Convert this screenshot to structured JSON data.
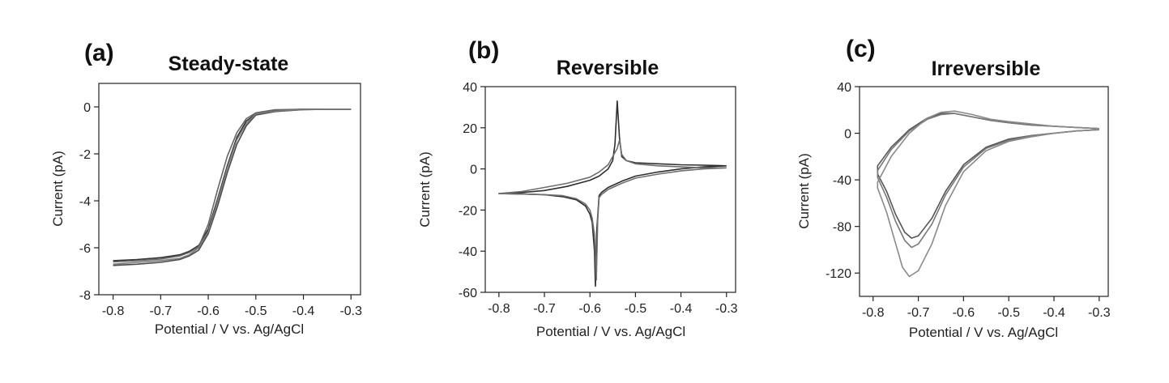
{
  "chart_data": [
    {
      "type": "line",
      "panel": "(a)",
      "title": "Steady-state",
      "xlabel": "Potential / V vs. Ag/AgCl",
      "ylabel": "Current (pA)",
      "xlim": [
        -0.83,
        -0.28
      ],
      "ylim": [
        -8,
        1
      ],
      "xticks": [
        -0.8,
        -0.7,
        -0.6,
        -0.5,
        -0.4,
        -0.3
      ],
      "xtick_labels": [
        "-0.8",
        "-0.7",
        "-0.6",
        "-0.5",
        "-0.4",
        "-0.3"
      ],
      "yticks": [
        -8,
        -6,
        -4,
        -2,
        0
      ],
      "ytick_labels": [
        "-8",
        "-6",
        "-4",
        "-2",
        "0"
      ],
      "colors": [
        "#333333",
        "#4a4a4a",
        "#666666",
        "#7a7a7a"
      ],
      "series": [
        {
          "x": [
            -0.8,
            -0.75,
            -0.7,
            -0.66,
            -0.64,
            -0.62,
            -0.6,
            -0.58,
            -0.56,
            -0.54,
            -0.52,
            -0.5,
            -0.46,
            -0.4,
            -0.35,
            -0.3
          ],
          "values": [
            -6.55,
            -6.5,
            -6.42,
            -6.3,
            -6.15,
            -5.9,
            -5.2,
            -3.9,
            -2.5,
            -1.3,
            -0.6,
            -0.3,
            -0.15,
            -0.1,
            -0.1,
            -0.1
          ]
        },
        {
          "x": [
            -0.8,
            -0.75,
            -0.7,
            -0.66,
            -0.64,
            -0.62,
            -0.6,
            -0.58,
            -0.56,
            -0.54,
            -0.52,
            -0.5,
            -0.46,
            -0.4,
            -0.35,
            -0.3
          ],
          "values": [
            -6.75,
            -6.7,
            -6.62,
            -6.5,
            -6.35,
            -6.1,
            -5.4,
            -4.2,
            -2.8,
            -1.6,
            -0.8,
            -0.35,
            -0.2,
            -0.12,
            -0.1,
            -0.1
          ]
        },
        {
          "x": [
            -0.8,
            -0.75,
            -0.7,
            -0.66,
            -0.64,
            -0.62,
            -0.6,
            -0.58,
            -0.56,
            -0.54,
            -0.52,
            -0.5,
            -0.46,
            -0.4,
            -0.35,
            -0.3
          ],
          "values": [
            -6.6,
            -6.55,
            -6.48,
            -6.35,
            -6.2,
            -5.95,
            -5.0,
            -3.5,
            -2.1,
            -1.1,
            -0.5,
            -0.25,
            -0.12,
            -0.1,
            -0.1,
            -0.1
          ]
        },
        {
          "x": [
            -0.8,
            -0.75,
            -0.7,
            -0.66,
            -0.64,
            -0.62,
            -0.6,
            -0.58,
            -0.56,
            -0.54,
            -0.52,
            -0.5,
            -0.46,
            -0.4,
            -0.35,
            -0.3
          ],
          "values": [
            -6.7,
            -6.62,
            -6.55,
            -6.45,
            -6.3,
            -6.0,
            -5.3,
            -4.0,
            -2.6,
            -1.4,
            -0.7,
            -0.3,
            -0.18,
            -0.12,
            -0.1,
            -0.1
          ]
        }
      ]
    },
    {
      "type": "line",
      "panel": "(b)",
      "title": "Reversible",
      "xlabel": "Potential / V vs. Ag/AgCl",
      "ylabel": "Current (pA)",
      "xlim": [
        -0.83,
        -0.28
      ],
      "ylim": [
        -60,
        40
      ],
      "xticks": [
        -0.8,
        -0.7,
        -0.6,
        -0.5,
        -0.4,
        -0.3
      ],
      "xtick_labels": [
        "-0.8",
        "-0.7",
        "-0.6",
        "-0.5",
        "-0.4",
        "-0.3"
      ],
      "yticks": [
        -60,
        -40,
        -20,
        0,
        20,
        40
      ],
      "ytick_labels": [
        "-60",
        "-40",
        "-20",
        "0",
        "20",
        "40"
      ],
      "colors": [
        "#2e2e2e",
        "#6e6e6e"
      ],
      "series": [
        {
          "x": [
            -0.3,
            -0.35,
            -0.4,
            -0.45,
            -0.5,
            -0.53,
            -0.56,
            -0.575,
            -0.58,
            -0.585,
            -0.588,
            -0.59,
            -0.595,
            -0.6,
            -0.61,
            -0.63,
            -0.66,
            -0.7,
            -0.75,
            -0.8,
            -0.75,
            -0.7,
            -0.65,
            -0.6,
            -0.58,
            -0.56,
            -0.55,
            -0.545,
            -0.54,
            -0.535,
            -0.53,
            -0.52,
            -0.5,
            -0.45,
            -0.4,
            -0.35,
            -0.3
          ],
          "values": [
            1.5,
            1.0,
            0.0,
            -1.5,
            -3.5,
            -6.0,
            -9.0,
            -11.5,
            -13.0,
            -30.0,
            -57.0,
            -40.0,
            -26.0,
            -22.0,
            -18.0,
            -15.0,
            -13.5,
            -12.5,
            -12.2,
            -12.0,
            -11.5,
            -10.5,
            -8.5,
            -5.5,
            -3.5,
            0.0,
            4.0,
            12.0,
            33.0,
            15.0,
            6.0,
            4.0,
            3.0,
            2.5,
            2.0,
            1.8,
            1.5
          ]
        },
        {
          "x": [
            -0.3,
            -0.35,
            -0.4,
            -0.45,
            -0.5,
            -0.53,
            -0.56,
            -0.575,
            -0.58,
            -0.583,
            -0.586,
            -0.59,
            -0.595,
            -0.6,
            -0.61,
            -0.63,
            -0.66,
            -0.7,
            -0.75,
            -0.8,
            -0.75,
            -0.7,
            -0.65,
            -0.6,
            -0.58,
            -0.56,
            -0.55,
            -0.54,
            -0.535,
            -0.53,
            -0.52,
            -0.5,
            -0.45,
            -0.4,
            -0.35,
            -0.3
          ],
          "values": [
            0.5,
            0.0,
            -1.0,
            -2.5,
            -4.5,
            -7.0,
            -10.0,
            -12.5,
            -14.0,
            -25.0,
            -54.0,
            -32.0,
            -24.0,
            -20.0,
            -17.0,
            -14.5,
            -13.0,
            -12.5,
            -12.2,
            -12.0,
            -11.0,
            -9.0,
            -7.0,
            -4.0,
            -1.5,
            2.0,
            6.0,
            10.0,
            14.0,
            7.0,
            4.0,
            2.5,
            1.5,
            1.0,
            0.5,
            0.5
          ]
        }
      ]
    },
    {
      "type": "line",
      "panel": "(c)",
      "title": "Irreversible",
      "xlabel": "Potential / V vs. Ag/AgCl",
      "ylabel": "Current (pA)",
      "xlim": [
        -0.83,
        -0.28
      ],
      "ylim": [
        -140,
        40
      ],
      "xticks": [
        -0.8,
        -0.7,
        -0.6,
        -0.5,
        -0.4,
        -0.3
      ],
      "xtick_labels": [
        "-0.8",
        "-0.7",
        "-0.6",
        "-0.5",
        "-0.4",
        "-0.3"
      ],
      "yticks": [
        -120,
        -80,
        -40,
        0,
        40
      ],
      "ytick_labels": [
        "-120",
        "-80",
        "-40",
        "0",
        "40"
      ],
      "colors": [
        "#555555",
        "#777777",
        "#8a8a8a"
      ],
      "series": [
        {
          "x": [
            -0.3,
            -0.35,
            -0.4,
            -0.45,
            -0.5,
            -0.55,
            -0.6,
            -0.64,
            -0.67,
            -0.7,
            -0.715,
            -0.73,
            -0.75,
            -0.77,
            -0.79,
            -0.79,
            -0.76,
            -0.72,
            -0.68,
            -0.65,
            -0.62,
            -0.58,
            -0.54,
            -0.5,
            -0.45,
            -0.4,
            -0.35,
            -0.3
          ],
          "values": [
            3,
            2,
            0,
            -2,
            -5,
            -12,
            -27,
            -50,
            -73,
            -88,
            -90,
            -85,
            -70,
            -50,
            -35,
            -28,
            -12,
            3,
            13,
            17,
            17,
            14,
            11,
            9,
            7,
            6,
            5,
            4
          ]
        },
        {
          "x": [
            -0.3,
            -0.35,
            -0.4,
            -0.45,
            -0.5,
            -0.55,
            -0.6,
            -0.64,
            -0.67,
            -0.7,
            -0.715,
            -0.73,
            -0.75,
            -0.77,
            -0.79,
            -0.79,
            -0.76,
            -0.72,
            -0.68,
            -0.65,
            -0.62,
            -0.58,
            -0.54,
            -0.5,
            -0.45,
            -0.4,
            -0.35,
            -0.3
          ],
          "values": [
            3,
            2,
            0,
            -2,
            -6,
            -13,
            -29,
            -53,
            -78,
            -95,
            -98,
            -92,
            -76,
            -55,
            -38,
            -32,
            -14,
            2,
            12,
            16,
            17,
            14,
            11,
            9,
            7,
            6,
            5,
            4
          ]
        },
        {
          "x": [
            -0.3,
            -0.35,
            -0.4,
            -0.45,
            -0.5,
            -0.55,
            -0.6,
            -0.64,
            -0.67,
            -0.7,
            -0.72,
            -0.735,
            -0.75,
            -0.77,
            -0.79,
            -0.79,
            -0.76,
            -0.72,
            -0.68,
            -0.65,
            -0.62,
            -0.58,
            -0.54,
            -0.5,
            -0.45,
            -0.4,
            -0.35,
            -0.3
          ],
          "values": [
            3,
            2,
            0,
            -3,
            -7,
            -15,
            -33,
            -62,
            -95,
            -118,
            -123,
            -115,
            -95,
            -68,
            -47,
            -42,
            -20,
            0,
            13,
            18,
            19,
            16,
            12,
            10,
            8,
            6,
            5,
            4
          ]
        }
      ]
    }
  ]
}
